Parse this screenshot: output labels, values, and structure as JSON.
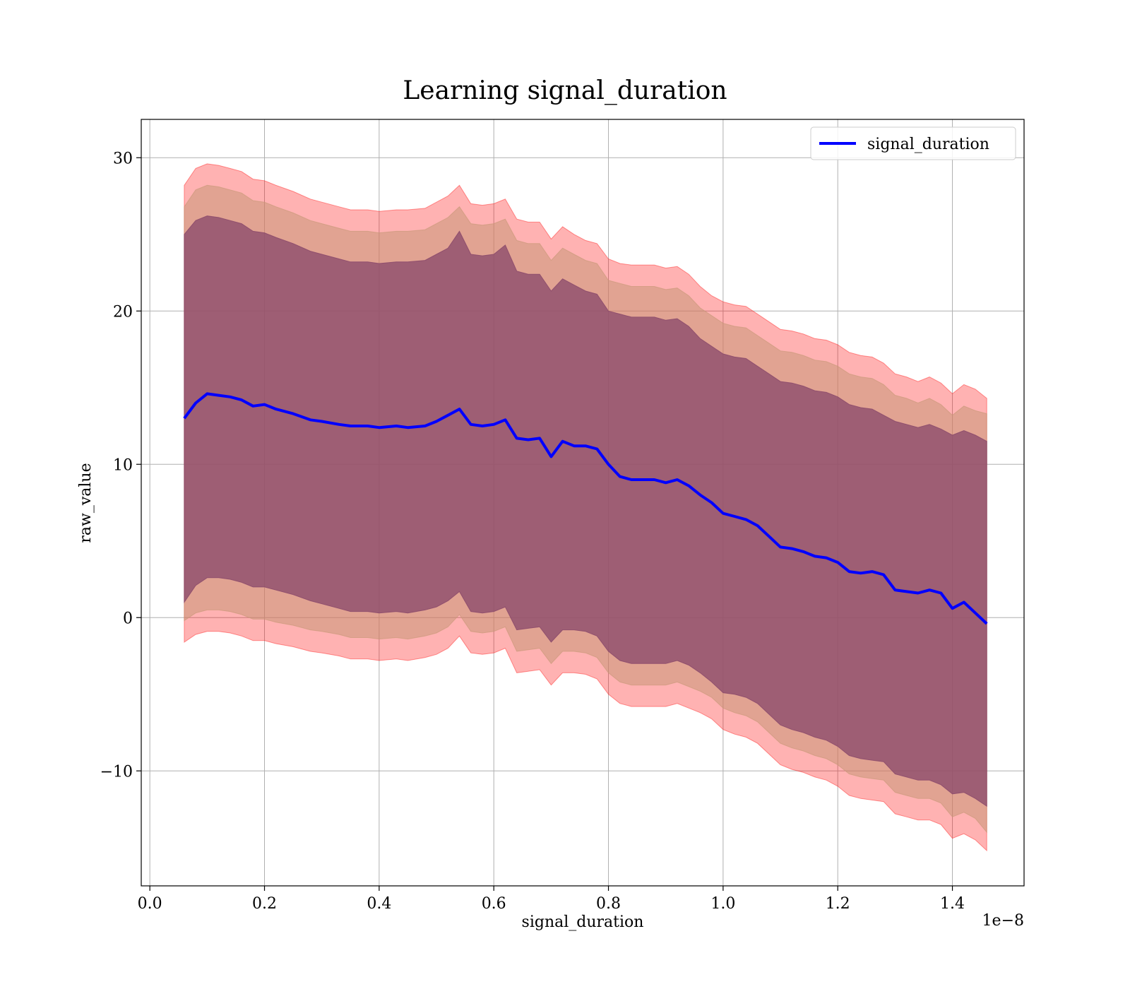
{
  "chart_data": {
    "type": "line",
    "title": "Learning signal_duration",
    "xlabel": "signal_duration",
    "ylabel": "raw_value",
    "x_offset_label": "1e−8",
    "xlim": [
      -0.015,
      1.525
    ],
    "ylim": [
      -17.5,
      32.5
    ],
    "x_scale_exponent": -8,
    "x_ticks": [
      0.0,
      0.2,
      0.4,
      0.6,
      0.8,
      1.0,
      1.2,
      1.4
    ],
    "x_tick_labels": [
      "0.0",
      "0.2",
      "0.4",
      "0.6",
      "0.8",
      "1.0",
      "1.2",
      "1.4"
    ],
    "y_ticks": [
      -10,
      0,
      10,
      20,
      30
    ],
    "y_tick_labels": [
      "−10",
      "0",
      "10",
      "20",
      "30"
    ],
    "grid": true,
    "legend": {
      "position": "upper-right",
      "entries": [
        "signal_duration"
      ]
    },
    "series": [
      {
        "name": "signal_duration",
        "color": "#0000ff",
        "x": [
          0.06,
          0.08,
          0.1,
          0.12,
          0.14,
          0.16,
          0.18,
          0.2,
          0.22,
          0.25,
          0.28,
          0.3,
          0.33,
          0.35,
          0.38,
          0.4,
          0.43,
          0.45,
          0.48,
          0.5,
          0.52,
          0.54,
          0.56,
          0.58,
          0.6,
          0.62,
          0.64,
          0.66,
          0.68,
          0.7,
          0.72,
          0.74,
          0.76,
          0.78,
          0.8,
          0.82,
          0.84,
          0.86,
          0.88,
          0.9,
          0.92,
          0.94,
          0.96,
          0.98,
          1.0,
          1.02,
          1.04,
          1.06,
          1.08,
          1.1,
          1.12,
          1.14,
          1.16,
          1.18,
          1.2,
          1.22,
          1.24,
          1.26,
          1.28,
          1.3,
          1.32,
          1.34,
          1.36,
          1.38,
          1.4,
          1.42,
          1.44,
          1.46
        ],
        "values": [
          13.0,
          14.0,
          14.6,
          14.5,
          14.4,
          14.2,
          13.8,
          13.9,
          13.6,
          13.3,
          12.9,
          12.8,
          12.6,
          12.5,
          12.5,
          12.4,
          12.5,
          12.4,
          12.5,
          12.8,
          13.2,
          13.6,
          12.6,
          12.5,
          12.6,
          12.9,
          11.7,
          11.6,
          11.7,
          10.5,
          11.5,
          11.2,
          11.2,
          11.0,
          10.0,
          9.2,
          9.0,
          9.0,
          9.0,
          8.8,
          9.0,
          8.6,
          8.0,
          7.5,
          6.8,
          6.6,
          6.4,
          6.0,
          5.3,
          4.6,
          4.5,
          4.3,
          4.0,
          3.9,
          3.6,
          3.0,
          2.9,
          3.0,
          2.8,
          1.8,
          1.7,
          1.6,
          1.8,
          1.6,
          0.6,
          1.0,
          0.3,
          -0.4
        ]
      }
    ],
    "bands": [
      {
        "color": "#ff0000",
        "opacity": 0.3,
        "upper": [
          28.2,
          29.3,
          29.6,
          29.5,
          29.3,
          29.1,
          28.6,
          28.5,
          28.2,
          27.8,
          27.3,
          27.1,
          26.8,
          26.6,
          26.6,
          26.5,
          26.6,
          26.6,
          26.7,
          27.1,
          27.5,
          28.2,
          27.0,
          26.9,
          27.0,
          27.3,
          26.0,
          25.8,
          25.8,
          24.7,
          25.5,
          25.0,
          24.6,
          24.4,
          23.4,
          23.1,
          23.0,
          23.0,
          23.0,
          22.8,
          22.9,
          22.4,
          21.6,
          21.0,
          20.6,
          20.4,
          20.3,
          19.8,
          19.3,
          18.8,
          18.7,
          18.5,
          18.2,
          18.1,
          17.8,
          17.3,
          17.1,
          17.0,
          16.6,
          15.9,
          15.7,
          15.4,
          15.7,
          15.3,
          14.6,
          15.2,
          14.9,
          14.3
        ],
        "lower": [
          -1.6,
          -1.1,
          -0.9,
          -0.9,
          -1.0,
          -1.2,
          -1.5,
          -1.5,
          -1.7,
          -1.9,
          -2.2,
          -2.3,
          -2.5,
          -2.7,
          -2.7,
          -2.8,
          -2.7,
          -2.8,
          -2.6,
          -2.4,
          -2.0,
          -1.2,
          -2.3,
          -2.4,
          -2.3,
          -2.0,
          -3.6,
          -3.5,
          -3.4,
          -4.4,
          -3.6,
          -3.6,
          -3.7,
          -4.0,
          -5.0,
          -5.6,
          -5.8,
          -5.8,
          -5.8,
          -5.8,
          -5.6,
          -5.9,
          -6.2,
          -6.6,
          -7.3,
          -7.6,
          -7.8,
          -8.2,
          -8.9,
          -9.6,
          -9.9,
          -10.1,
          -10.4,
          -10.6,
          -11.0,
          -11.6,
          -11.8,
          -11.9,
          -12.0,
          -12.8,
          -13.0,
          -13.2,
          -13.2,
          -13.5,
          -14.4,
          -14.1,
          -14.5,
          -15.2
        ]
      },
      {
        "color": "#c89878",
        "opacity": 0.55,
        "upper": [
          26.8,
          27.9,
          28.2,
          28.1,
          27.9,
          27.7,
          27.2,
          27.1,
          26.8,
          26.4,
          25.9,
          25.7,
          25.4,
          25.2,
          25.2,
          25.1,
          25.2,
          25.2,
          25.3,
          25.7,
          26.1,
          26.8,
          25.7,
          25.6,
          25.7,
          26.0,
          24.6,
          24.4,
          24.4,
          23.3,
          24.1,
          23.7,
          23.3,
          23.1,
          22.0,
          21.8,
          21.6,
          21.6,
          21.6,
          21.4,
          21.5,
          21.0,
          20.2,
          19.7,
          19.2,
          19.0,
          18.9,
          18.4,
          17.9,
          17.4,
          17.3,
          17.1,
          16.8,
          16.7,
          16.4,
          15.9,
          15.7,
          15.6,
          15.2,
          14.5,
          14.3,
          14.0,
          14.3,
          13.9,
          13.2,
          13.8,
          13.5,
          13.3
        ],
        "lower": [
          -0.2,
          0.3,
          0.5,
          0.5,
          0.4,
          0.2,
          -0.1,
          -0.1,
          -0.3,
          -0.5,
          -0.8,
          -0.9,
          -1.1,
          -1.3,
          -1.3,
          -1.4,
          -1.3,
          -1.4,
          -1.2,
          -1.0,
          -0.6,
          0.2,
          -0.9,
          -1.0,
          -0.9,
          -0.6,
          -2.2,
          -2.1,
          -2.0,
          -3.0,
          -2.2,
          -2.2,
          -2.3,
          -2.6,
          -3.6,
          -4.2,
          -4.4,
          -4.4,
          -4.4,
          -4.4,
          -4.2,
          -4.5,
          -4.8,
          -5.2,
          -5.9,
          -6.2,
          -6.4,
          -6.8,
          -7.5,
          -8.2,
          -8.5,
          -8.7,
          -9.0,
          -9.2,
          -9.6,
          -10.2,
          -10.4,
          -10.5,
          -10.6,
          -11.4,
          -11.6,
          -11.8,
          -11.8,
          -12.1,
          -13.0,
          -12.7,
          -13.1,
          -14.0
        ]
      },
      {
        "color": "#8b4a6b",
        "opacity": 0.78,
        "upper": [
          25.0,
          25.9,
          26.2,
          26.1,
          25.9,
          25.7,
          25.2,
          25.1,
          24.8,
          24.4,
          23.9,
          23.7,
          23.4,
          23.2,
          23.2,
          23.1,
          23.2,
          23.2,
          23.3,
          23.7,
          24.1,
          25.2,
          23.7,
          23.6,
          23.7,
          24.3,
          22.6,
          22.4,
          22.4,
          21.3,
          22.1,
          21.7,
          21.3,
          21.1,
          20.0,
          19.8,
          19.6,
          19.6,
          19.6,
          19.4,
          19.5,
          19.0,
          18.2,
          17.7,
          17.2,
          17.0,
          16.9,
          16.4,
          15.9,
          15.4,
          15.3,
          15.1,
          14.8,
          14.7,
          14.4,
          13.9,
          13.7,
          13.6,
          13.2,
          12.8,
          12.6,
          12.4,
          12.6,
          12.3,
          11.9,
          12.2,
          11.9,
          11.5
        ],
        "lower": [
          1.0,
          2.1,
          2.6,
          2.6,
          2.5,
          2.3,
          2.0,
          2.0,
          1.8,
          1.5,
          1.1,
          0.9,
          0.6,
          0.4,
          0.4,
          0.3,
          0.4,
          0.3,
          0.5,
          0.7,
          1.1,
          1.7,
          0.4,
          0.3,
          0.4,
          0.7,
          -0.8,
          -0.7,
          -0.6,
          -1.6,
          -0.8,
          -0.8,
          -0.9,
          -1.2,
          -2.2,
          -2.8,
          -3.0,
          -3.0,
          -3.0,
          -3.0,
          -2.8,
          -3.1,
          -3.6,
          -4.2,
          -4.9,
          -5.0,
          -5.2,
          -5.6,
          -6.3,
          -7.0,
          -7.3,
          -7.5,
          -7.8,
          -8.0,
          -8.4,
          -9.0,
          -9.2,
          -9.3,
          -9.4,
          -10.2,
          -10.4,
          -10.6,
          -10.6,
          -10.9,
          -11.5,
          -11.4,
          -11.8,
          -12.3
        ]
      }
    ]
  }
}
